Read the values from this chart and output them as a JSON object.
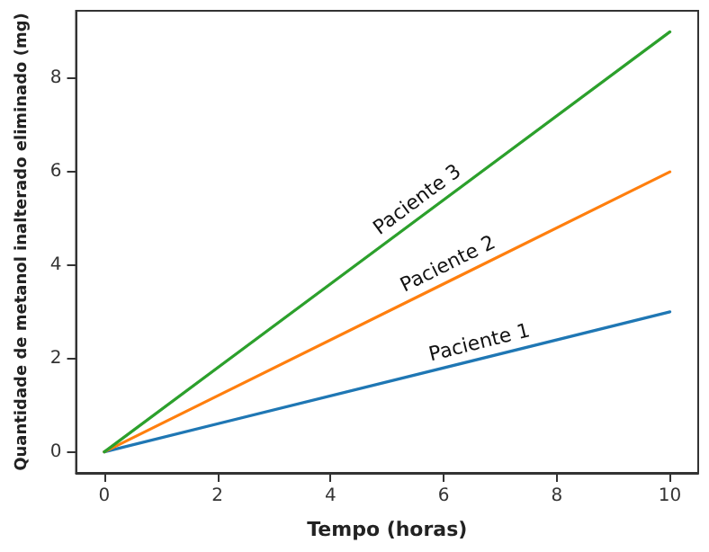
{
  "chart_data": {
    "type": "line",
    "xlabel": "Tempo (horas)",
    "ylabel": "Quantidade de metanol inalterado eliminado (mg)",
    "x": [
      0,
      10
    ],
    "series": [
      {
        "name": "Paciente 1",
        "color": "#1f77b4",
        "values": [
          0,
          3
        ]
      },
      {
        "name": "Paciente 2",
        "color": "#ff7f0e",
        "values": [
          0,
          6
        ]
      },
      {
        "name": "Paciente 3",
        "color": "#2ca02c",
        "values": [
          0,
          9
        ]
      }
    ],
    "xlim": [
      -0.5,
      10.5
    ],
    "xticks": [
      0,
      2,
      4,
      6,
      8,
      10
    ],
    "ylim": [
      -0.45,
      9.45
    ],
    "yticks": [
      0,
      2,
      4,
      6,
      8
    ],
    "grid": false,
    "legend": false,
    "marker": "none",
    "line_style": "solid"
  }
}
